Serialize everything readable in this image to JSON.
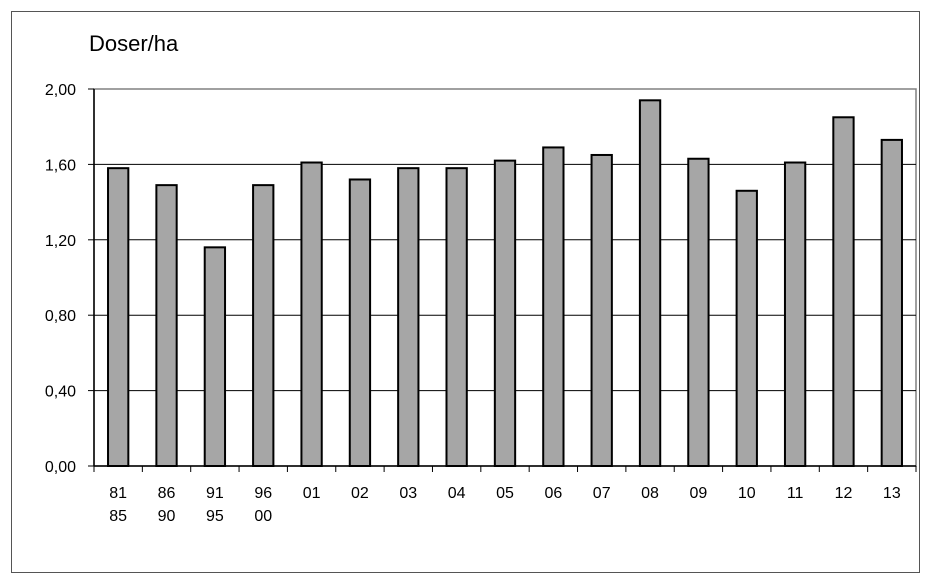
{
  "chart_data": {
    "type": "bar",
    "ylabel": "Doser/ha",
    "ylim": [
      0,
      2.0
    ],
    "yticks": [
      "0,00",
      "0,40",
      "0,80",
      "1,20",
      "1,60",
      "2,00"
    ],
    "ytick_values": [
      0,
      0.4,
      0.8,
      1.2,
      1.6,
      2.0
    ],
    "categories": [
      [
        "81",
        "85"
      ],
      [
        "86",
        "90"
      ],
      [
        "91",
        "95"
      ],
      [
        "96",
        "00"
      ],
      [
        "01"
      ],
      [
        "02"
      ],
      [
        "03"
      ],
      [
        "04"
      ],
      [
        "05"
      ],
      [
        "06"
      ],
      [
        "07"
      ],
      [
        "08"
      ],
      [
        "09"
      ],
      [
        "10"
      ],
      [
        "11"
      ],
      [
        "12"
      ],
      [
        "13"
      ]
    ],
    "values": [
      1.58,
      1.49,
      1.16,
      1.49,
      1.61,
      1.52,
      1.58,
      1.58,
      1.62,
      1.69,
      1.65,
      1.94,
      1.63,
      1.46,
      1.61,
      1.85,
      1.73
    ],
    "bar_color": "#a6a6a6",
    "gridlines": true
  }
}
